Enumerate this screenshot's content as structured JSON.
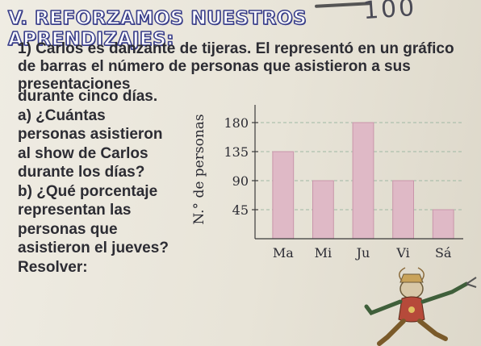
{
  "handwriting": "100",
  "section_title": "V. REFORZAMOS NUESTROS APRENDIZAJES:",
  "problem": {
    "top_lines": [
      "1) Carlos es danzante de tijeras. El representó en un gráfico",
      "de barras el número de personas que asistieron a sus",
      "presentaciones"
    ],
    "left_lines": [
      "durante cinco días.",
      "a) ¿Cuántas",
      "personas asistieron",
      "al show de Carlos",
      "durante los días?",
      "b) ¿Qué porcentaje",
      "representan las",
      "personas que",
      "asistieron el jueves?",
      "Resolver:"
    ]
  },
  "chart_data": {
    "type": "bar",
    "categories": [
      "Ma",
      "Mi",
      "Ju",
      "Vi",
      "Sá"
    ],
    "values": [
      135,
      90,
      180,
      90,
      45
    ],
    "ylabel": "N.° de personas",
    "yticks": [
      45,
      90,
      135,
      180
    ],
    "ylim": [
      0,
      210
    ],
    "grid": true,
    "colors": {
      "bar": "#dfb9c6",
      "bar_edge": "#c995aa",
      "grid": "#9fb8a4",
      "axis": "#3b3b3b"
    }
  },
  "illustration": {
    "icon": "scissors-dancer-icon"
  }
}
